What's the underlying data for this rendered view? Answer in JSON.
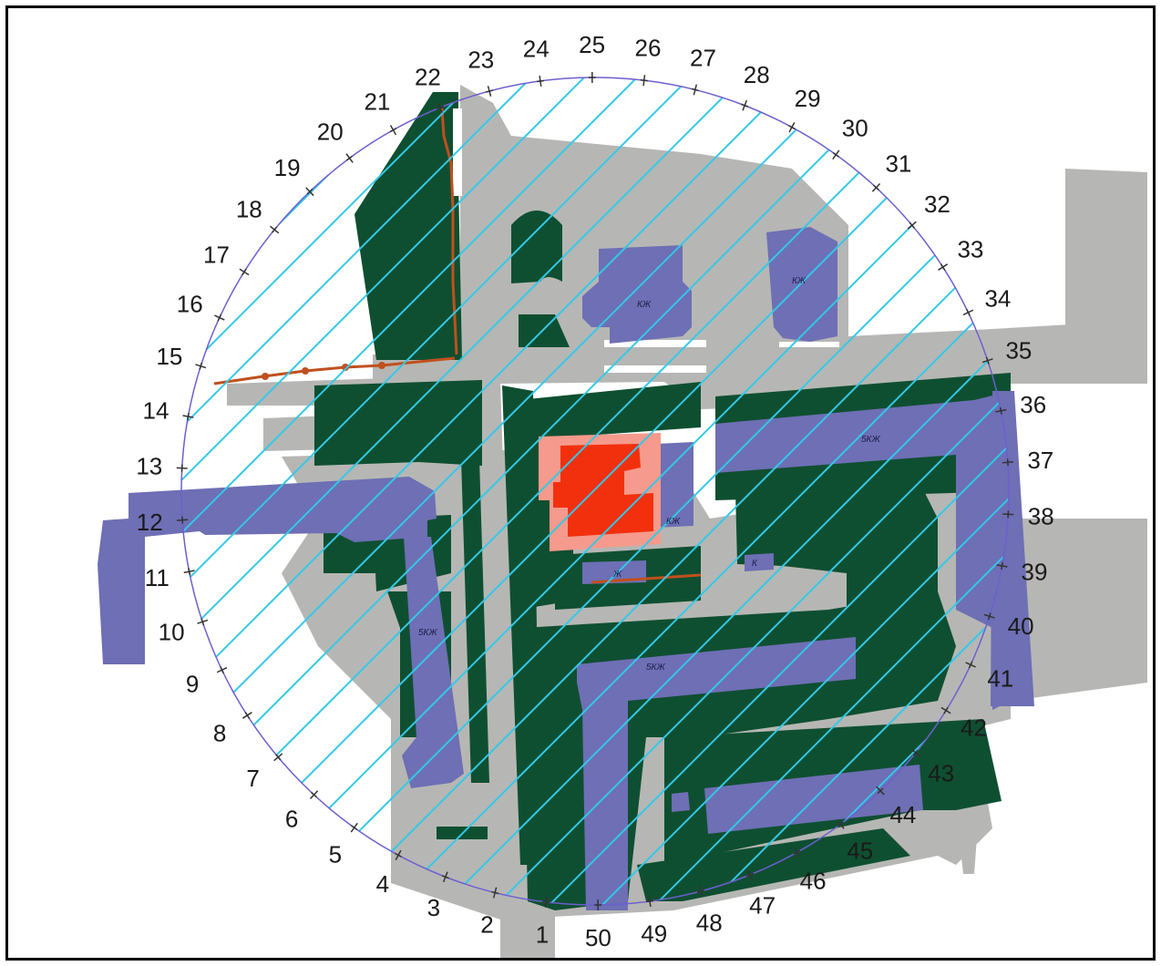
{
  "map": {
    "boundary_point_labels": [
      "1",
      "2",
      "3",
      "4",
      "5",
      "6",
      "7",
      "8",
      "9",
      "10",
      "11",
      "12",
      "13",
      "14",
      "15",
      "16",
      "17",
      "18",
      "19",
      "20",
      "21",
      "22",
      "23",
      "24",
      "25",
      "26",
      "27",
      "28",
      "29",
      "30",
      "31",
      "32",
      "33",
      "34",
      "35",
      "36",
      "37",
      "38",
      "39",
      "40",
      "41",
      "42",
      "43",
      "44",
      "45",
      "46",
      "47",
      "48",
      "49",
      "50"
    ],
    "building_tags": {
      "tag_a": "5КЖ",
      "tag_b": "5КЖ",
      "tag_c": "5КЖ",
      "tag_d": "КЖ",
      "tag_e": "КЖ",
      "tag_f": "КЖ",
      "tag_g": "Ж",
      "tag_h": "К"
    },
    "colors": {
      "road": "#b6b7b4",
      "green_zone": "#0f4f31",
      "residential": "#6e6fb4",
      "target_building": "#f2300e",
      "target_outline": "#f59a8c",
      "hatch": "#33c9e8",
      "boundary": "#6d5fd0",
      "utility_line": "#c0501e"
    }
  }
}
